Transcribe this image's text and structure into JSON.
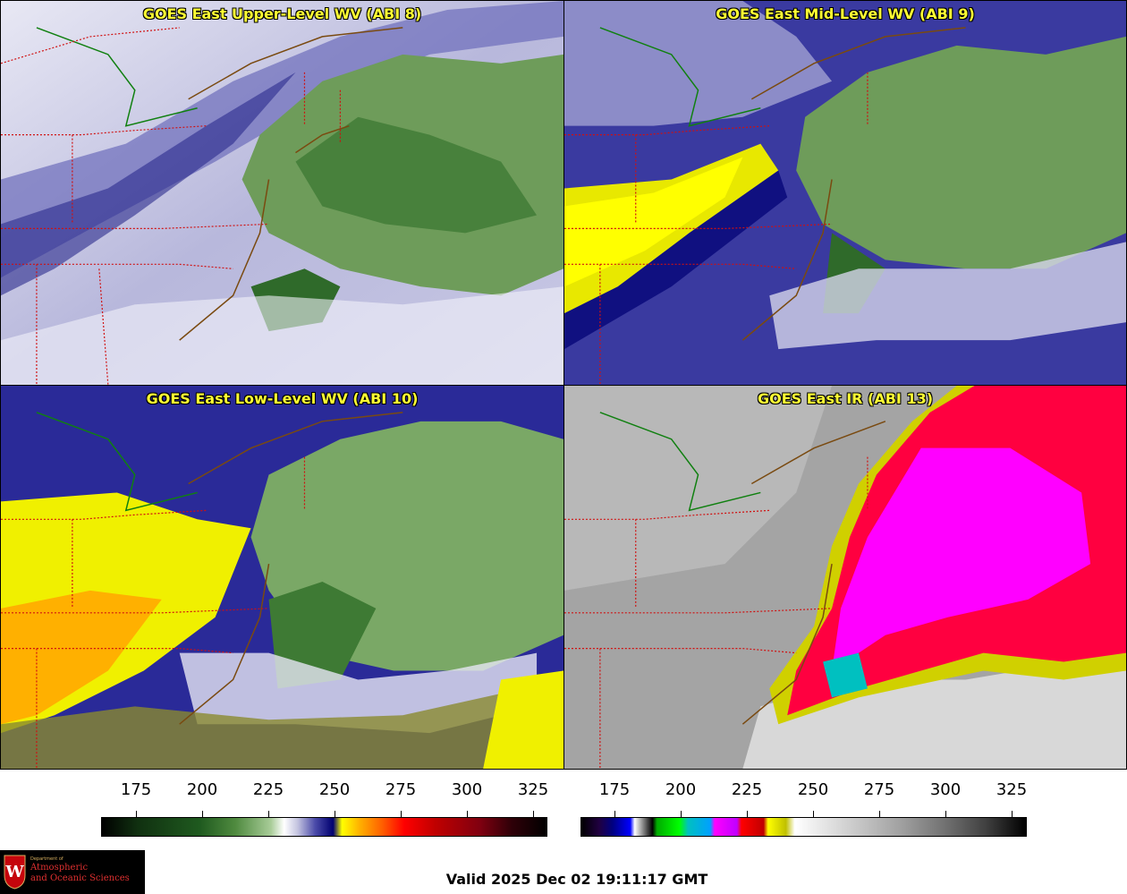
{
  "panels": [
    {
      "title": "GOES East Upper-Level WV (ABI 8)"
    },
    {
      "title": "GOES East Mid-Level WV (ABI 9)"
    },
    {
      "title": "GOES East Low-Level WV (ABI 10)"
    },
    {
      "title": "GOES East IR (ABI 13)"
    }
  ],
  "colorbars": {
    "water_vapor": {
      "ticks": [
        "175",
        "200",
        "225",
        "250",
        "275",
        "300",
        "325"
      ]
    },
    "infrared": {
      "ticks": [
        "175",
        "200",
        "225",
        "250",
        "275",
        "300",
        "325"
      ]
    }
  },
  "logo": {
    "dept": "Department of",
    "line1": "Atmospheric",
    "line2": "and Oceanic Sciences",
    "crest_letter": "W"
  },
  "footer": {
    "valid": "Valid 2025 Dec 02 19:11:17 GMT"
  },
  "colors": {
    "title_text": "#ffff33",
    "state_borders": "#d01010",
    "coastline": "#7a4a10",
    "lake_boundary": "#108010"
  }
}
